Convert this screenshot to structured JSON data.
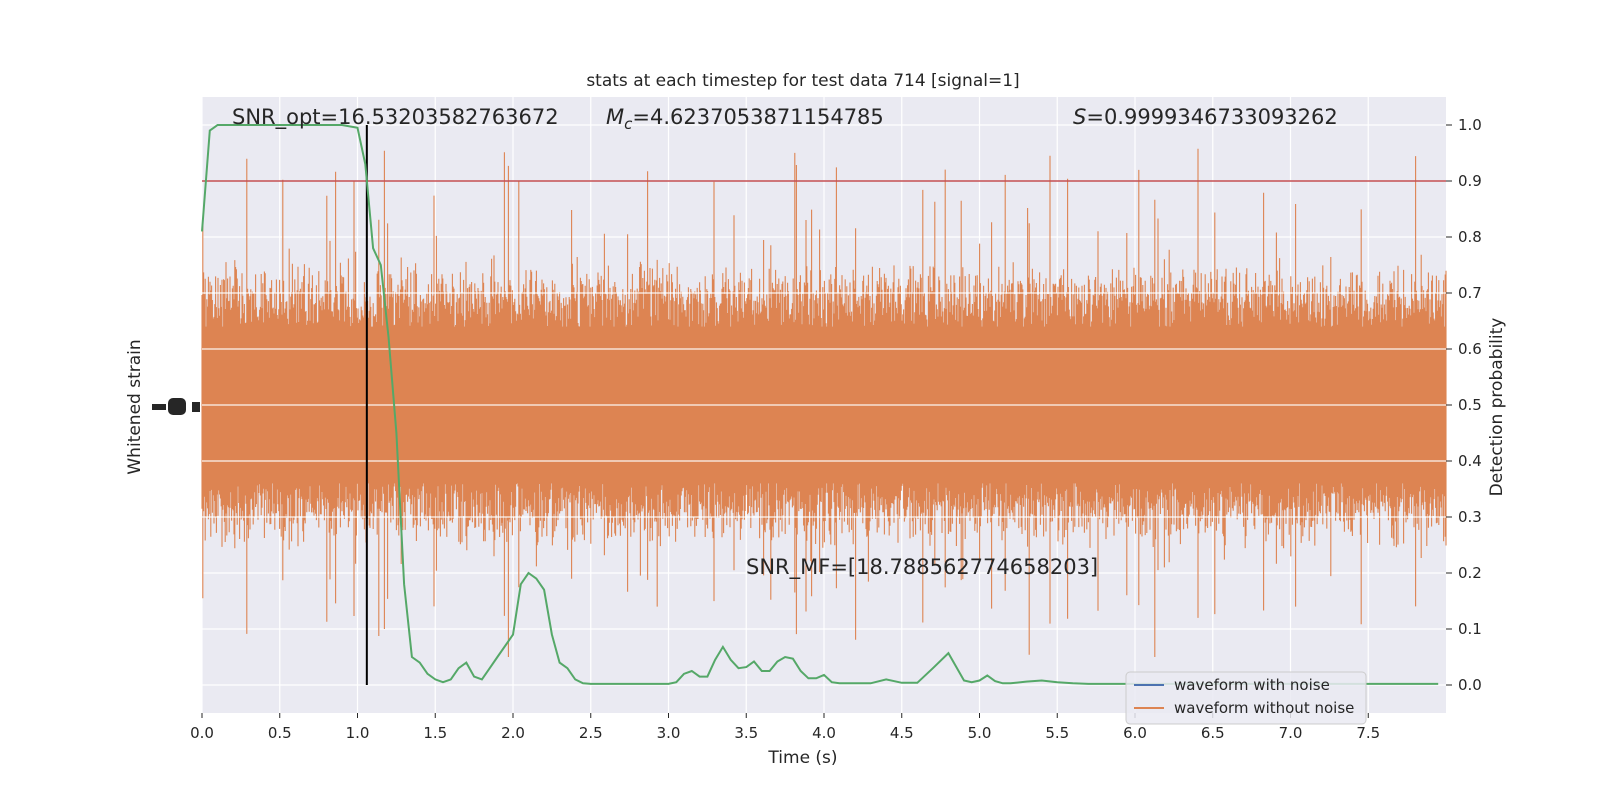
{
  "chart_data": {
    "type": "line",
    "title": "stats at each timestep for test data 714 [signal=1]",
    "xlabel": "Time (s)",
    "ylabel_left": "Whitened strain",
    "ylabel_right": "Detection probability",
    "xlim": [
      0.0,
      8.0
    ],
    "ylim_right": [
      -0.05,
      1.05
    ],
    "x_ticks": [
      0.0,
      0.5,
      1.0,
      1.5,
      2.0,
      2.5,
      3.0,
      3.5,
      4.0,
      4.5,
      5.0,
      5.5,
      6.0,
      6.5,
      7.0,
      7.5
    ],
    "x_tick_labels": [
      "0.0",
      "0.5",
      "1.0",
      "1.5",
      "2.0",
      "2.5",
      "3.0",
      "3.5",
      "4.0",
      "4.5",
      "5.0",
      "5.5",
      "6.0",
      "6.5",
      "7.0",
      "7.5"
    ],
    "y_right_ticks": [
      0.0,
      0.1,
      0.2,
      0.3,
      0.4,
      0.5,
      0.6,
      0.7,
      0.8,
      0.9,
      1.0
    ],
    "y_right_tick_labels": [
      "0.0",
      "0.1",
      "0.2",
      "0.3",
      "0.4",
      "0.5",
      "0.6",
      "0.7",
      "0.8",
      "0.9",
      "1.0"
    ],
    "grid": true,
    "legend_position": "lower-right",
    "annotations": {
      "snr_opt": "SNR_opt=16.53203582763672",
      "mc_symbol": "M",
      "mc_subscript": "c",
      "mc_value": "=4.6237053871154785",
      "s_symbol": "S",
      "s_value": "=0.9999346733093262",
      "snr_mf": "SNR_MF=[18.788562774658203]"
    },
    "threshold": {
      "value": 0.9,
      "color": "#c44e52"
    },
    "vertical_marker": {
      "x": 1.06,
      "color": "#000000"
    },
    "series": [
      {
        "name": "waveform with noise",
        "color": "#4c72b0"
      },
      {
        "name": "waveform without noise",
        "color": "#dd8452"
      }
    ],
    "strain_band": {
      "center": 0.5,
      "typical_half_width": 0.19,
      "max_half_width": 0.42,
      "color": "#dd8452"
    },
    "detection_probability": {
      "color": "#55a868",
      "x": [
        0.0,
        0.05,
        0.1,
        0.2,
        0.3,
        0.4,
        0.5,
        0.6,
        0.7,
        0.8,
        0.9,
        1.0,
        1.05,
        1.1,
        1.15,
        1.2,
        1.25,
        1.3,
        1.35,
        1.4,
        1.45,
        1.5,
        1.55,
        1.6,
        1.65,
        1.7,
        1.75,
        1.8,
        1.85,
        1.9,
        2.0,
        2.05,
        2.1,
        2.15,
        2.2,
        2.25,
        2.3,
        2.35,
        2.4,
        2.45,
        2.5,
        2.55,
        2.6,
        2.7,
        2.8,
        2.9,
        3.0,
        3.05,
        3.1,
        3.15,
        3.2,
        3.25,
        3.3,
        3.35,
        3.4,
        3.45,
        3.5,
        3.55,
        3.6,
        3.65,
        3.7,
        3.75,
        3.8,
        3.85,
        3.9,
        3.95,
        4.0,
        4.05,
        4.1,
        4.2,
        4.3,
        4.4,
        4.5,
        4.6,
        4.7,
        4.8,
        4.9,
        4.95,
        5.0,
        5.05,
        5.1,
        5.15,
        5.2,
        5.3,
        5.4,
        5.5,
        5.6,
        5.7,
        5.8,
        5.9,
        6.0,
        6.1,
        6.2,
        6.3,
        6.35,
        6.4,
        6.45,
        6.5,
        6.55,
        6.6,
        6.65,
        6.7,
        6.75,
        6.8,
        6.85,
        6.9,
        7.0,
        7.1,
        7.2,
        7.3,
        7.4,
        7.5,
        7.6,
        7.7,
        7.8,
        7.95
      ],
      "y": [
        0.81,
        0.99,
        1.0,
        1.0,
        1.0,
        1.0,
        1.0,
        1.0,
        1.0,
        1.0,
        1.0,
        0.995,
        0.93,
        0.78,
        0.75,
        0.62,
        0.45,
        0.18,
        0.05,
        0.04,
        0.02,
        0.01,
        0.005,
        0.01,
        0.03,
        0.04,
        0.015,
        0.01,
        0.03,
        0.05,
        0.09,
        0.18,
        0.2,
        0.19,
        0.17,
        0.09,
        0.04,
        0.03,
        0.01,
        0.003,
        0.002,
        0.002,
        0.002,
        0.002,
        0.002,
        0.002,
        0.002,
        0.005,
        0.02,
        0.025,
        0.015,
        0.015,
        0.045,
        0.068,
        0.045,
        0.03,
        0.032,
        0.042,
        0.025,
        0.025,
        0.042,
        0.05,
        0.047,
        0.025,
        0.012,
        0.012,
        0.018,
        0.005,
        0.003,
        0.003,
        0.003,
        0.01,
        0.004,
        0.004,
        0.03,
        0.057,
        0.008,
        0.005,
        0.008,
        0.017,
        0.007,
        0.003,
        0.003,
        0.006,
        0.008,
        0.005,
        0.003,
        0.002,
        0.002,
        0.002,
        0.002,
        0.002,
        0.002,
        0.002,
        0.002,
        0.002,
        0.002,
        0.002,
        0.002,
        0.002,
        0.002,
        0.002,
        0.002,
        0.002,
        0.002,
        0.002,
        0.002,
        0.002,
        0.002,
        0.002,
        0.002,
        0.002,
        0.002,
        0.002,
        0.002,
        0.002
      ]
    }
  }
}
